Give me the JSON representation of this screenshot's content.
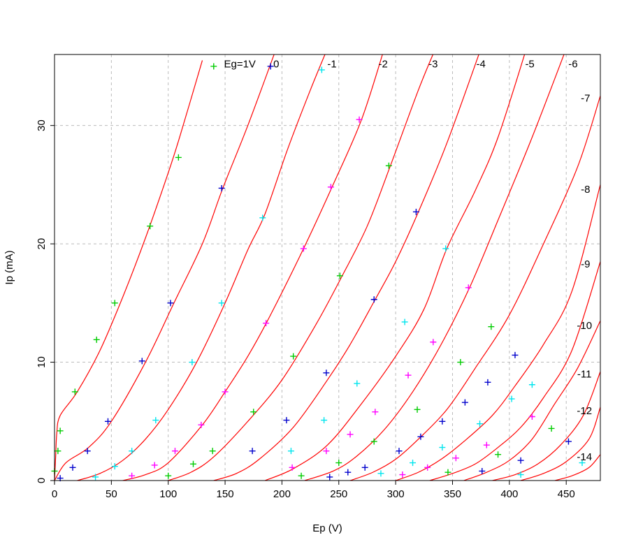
{
  "chart_data": {
    "type": "scatter",
    "title": "",
    "xlabel": "Ep (V)",
    "ylabel": "Ip (mA)",
    "xlim": [
      0,
      480
    ],
    "ylim": [
      0,
      36
    ],
    "x_ticks": [
      0,
      50,
      100,
      150,
      200,
      250,
      300,
      350,
      400,
      450
    ],
    "y_ticks": [
      0,
      10,
      20,
      30
    ],
    "grid": true,
    "colors": {
      "curve": "#ff0000",
      "grid": "#bbbbbb",
      "points": [
        "#00cc00",
        "#0000cc",
        "#00e5ee",
        "#ff00ff"
      ]
    },
    "curve_labels": [
      "Eg=1V",
      "0",
      "-1",
      "-2",
      "-3",
      "-4",
      "-5",
      "-6",
      "-7",
      "-8",
      "-9",
      "-10",
      "-11",
      "-12",
      "-14"
    ],
    "curves": [
      {
        "label": "Eg=1V",
        "points": [
          [
            0,
            0
          ],
          [
            1,
            2
          ],
          [
            2,
            4
          ],
          [
            5,
            5.5
          ],
          [
            20,
            7.5
          ],
          [
            40,
            11
          ],
          [
            60,
            15.5
          ],
          [
            80,
            20.5
          ],
          [
            100,
            26
          ],
          [
            110,
            29
          ],
          [
            130,
            35.5
          ]
        ]
      },
      {
        "label": "0",
        "points": [
          [
            0,
            0
          ],
          [
            10,
            1.5
          ],
          [
            30,
            2.8
          ],
          [
            50,
            5
          ],
          [
            80,
            10
          ],
          [
            105,
            15
          ],
          [
            130,
            20
          ],
          [
            148,
            24.7
          ],
          [
            170,
            30
          ],
          [
            195,
            36.5
          ]
        ]
      },
      {
        "label": "-1",
        "points": [
          [
            20,
            0
          ],
          [
            40,
            0.6
          ],
          [
            60,
            1.7
          ],
          [
            80,
            3.5
          ],
          [
            100,
            6
          ],
          [
            125,
            10
          ],
          [
            150,
            15
          ],
          [
            170,
            19.5
          ],
          [
            185,
            22.5
          ],
          [
            205,
            28
          ],
          [
            225,
            33
          ],
          [
            240,
            36.5
          ]
        ]
      },
      {
        "label": "-2",
        "points": [
          [
            60,
            0
          ],
          [
            80,
            0.5
          ],
          [
            100,
            1.5
          ],
          [
            130,
            4.7
          ],
          [
            150,
            7.5
          ],
          [
            170,
            10.5
          ],
          [
            190,
            14
          ],
          [
            220,
            19.8
          ],
          [
            245,
            25
          ],
          [
            270,
            30.5
          ],
          [
            290,
            36.5
          ]
        ]
      },
      {
        "label": "-3",
        "points": [
          [
            100,
            0
          ],
          [
            120,
            0.7
          ],
          [
            140,
            2
          ],
          [
            170,
            5
          ],
          [
            200,
            8.5
          ],
          [
            230,
            13.2
          ],
          [
            253,
            17.3
          ],
          [
            275,
            21.5
          ],
          [
            295,
            26.5
          ],
          [
            320,
            33
          ],
          [
            335,
            36.5
          ]
        ]
      },
      {
        "label": "-4",
        "points": [
          [
            140,
            0
          ],
          [
            160,
            0.6
          ],
          [
            180,
            1.8
          ],
          [
            210,
            4.5
          ],
          [
            240,
            8.5
          ],
          [
            260,
            11.5
          ],
          [
            282,
            15.3
          ],
          [
            300,
            18.5
          ],
          [
            320,
            22.7
          ],
          [
            345,
            28.5
          ],
          [
            375,
            36.5
          ]
        ]
      },
      {
        "label": "-5",
        "points": [
          [
            185,
            0
          ],
          [
            210,
            1
          ],
          [
            240,
            3
          ],
          [
            270,
            6.5
          ],
          [
            300,
            10.5
          ],
          [
            325,
            14.5
          ],
          [
            345,
            19.6
          ],
          [
            370,
            24.5
          ],
          [
            390,
            29
          ],
          [
            415,
            36.5
          ]
        ]
      },
      {
        "label": "-6",
        "points": [
          [
            220,
            0
          ],
          [
            245,
            0.8
          ],
          [
            265,
            2
          ],
          [
            290,
            4.3
          ],
          [
            315,
            7.5
          ],
          [
            340,
            11.5
          ],
          [
            365,
            16.3
          ],
          [
            390,
            22
          ],
          [
            420,
            29
          ],
          [
            450,
            36.5
          ]
        ]
      },
      {
        "label": "-7",
        "points": [
          [
            260,
            0
          ],
          [
            280,
            0.7
          ],
          [
            300,
            1.8
          ],
          [
            320,
            3.5
          ],
          [
            345,
            6
          ],
          [
            370,
            9.5
          ],
          [
            400,
            14
          ],
          [
            430,
            20
          ],
          [
            460,
            26.5
          ],
          [
            480,
            32.5
          ]
        ]
      },
      {
        "label": "-8",
        "points": [
          [
            300,
            0
          ],
          [
            320,
            0.7
          ],
          [
            340,
            1.8
          ],
          [
            360,
            3.3
          ],
          [
            385,
            5.5
          ],
          [
            405,
            8
          ],
          [
            430,
            11.5
          ],
          [
            455,
            16
          ],
          [
            480,
            25
          ]
        ]
      },
      {
        "label": "-9",
        "points": [
          [
            330,
            0
          ],
          [
            350,
            0.6
          ],
          [
            370,
            1.4
          ],
          [
            390,
            2.8
          ],
          [
            410,
            4.5
          ],
          [
            430,
            7
          ],
          [
            455,
            11
          ],
          [
            480,
            18.5
          ]
        ]
      },
      {
        "label": "-10",
        "points": [
          [
            360,
            0
          ],
          [
            380,
            0.7
          ],
          [
            400,
            1.7
          ],
          [
            420,
            3.5
          ],
          [
            440,
            6.5
          ],
          [
            460,
            9.5
          ],
          [
            480,
            13.5
          ]
        ]
      },
      {
        "label": "-11",
        "points": [
          [
            385,
            0
          ],
          [
            405,
            0.5
          ],
          [
            425,
            1.4
          ],
          [
            445,
            3
          ],
          [
            465,
            5.5
          ],
          [
            480,
            9.2
          ]
        ]
      },
      {
        "label": "-12",
        "points": [
          [
            410,
            0
          ],
          [
            430,
            0.6
          ],
          [
            450,
            1.6
          ],
          [
            470,
            3.5
          ],
          [
            480,
            6.2
          ]
        ]
      },
      {
        "label": "-14",
        "points": [
          [
            440,
            0
          ],
          [
            455,
            0.4
          ],
          [
            470,
            1.1
          ],
          [
            480,
            2.2
          ]
        ]
      }
    ],
    "series": [
      {
        "name": "",
        "color": "#00cc00",
        "points": [
          [
            0,
            0.8
          ],
          [
            3,
            2.5
          ],
          [
            5,
            4.2
          ],
          [
            18,
            7.5
          ],
          [
            37,
            11.9
          ],
          [
            53,
            15
          ],
          [
            84,
            21.5
          ],
          [
            109,
            27.3
          ],
          [
            140,
            35
          ],
          [
            100,
            0.4
          ],
          [
            122,
            1.4
          ],
          [
            139,
            2.5
          ],
          [
            175,
            5.8
          ],
          [
            210,
            10.5
          ],
          [
            251,
            17.3
          ],
          [
            294,
            26.6
          ],
          [
            217,
            0.4
          ],
          [
            250,
            1.5
          ],
          [
            281,
            3.3
          ],
          [
            319,
            6
          ],
          [
            357,
            10
          ],
          [
            384,
            13
          ],
          [
            346,
            0.7
          ],
          [
            390,
            2.2
          ],
          [
            437,
            4.4
          ]
        ]
      },
      {
        "name": "",
        "color": "#0000cc",
        "points": [
          [
            5,
            0.2
          ],
          [
            16,
            1.1
          ],
          [
            29,
            2.5
          ],
          [
            47,
            5
          ],
          [
            77,
            10.1
          ],
          [
            102,
            15
          ],
          [
            147,
            24.7
          ],
          [
            190,
            35
          ],
          [
            174,
            2.5
          ],
          [
            204,
            5.1
          ],
          [
            239,
            9.1
          ],
          [
            281,
            15.3
          ],
          [
            318,
            22.7
          ],
          [
            242,
            0.3
          ],
          [
            258,
            0.7
          ],
          [
            273,
            1.1
          ],
          [
            303,
            2.5
          ],
          [
            322,
            3.7
          ],
          [
            341,
            5
          ],
          [
            361,
            6.6
          ],
          [
            381,
            8.3
          ],
          [
            405,
            10.6
          ],
          [
            376,
            0.8
          ],
          [
            410,
            1.7
          ],
          [
            452,
            3.3
          ]
        ]
      },
      {
        "name": "",
        "color": "#00e5ee",
        "points": [
          [
            36,
            0.3
          ],
          [
            53,
            1.2
          ],
          [
            68,
            2.5
          ],
          [
            89,
            5.1
          ],
          [
            121,
            10
          ],
          [
            147,
            15
          ],
          [
            183,
            22.2
          ],
          [
            235,
            34.7
          ],
          [
            208,
            2.5
          ],
          [
            237,
            5.1
          ],
          [
            266,
            8.2
          ],
          [
            308,
            13.4
          ],
          [
            344,
            19.6
          ],
          [
            287,
            0.6
          ],
          [
            315,
            1.5
          ],
          [
            341,
            2.8
          ],
          [
            374,
            4.8
          ],
          [
            402,
            6.9
          ],
          [
            420,
            8.1
          ],
          [
            410,
            0.5
          ],
          [
            464,
            1.5
          ]
        ]
      },
      {
        "name": "",
        "color": "#ff00ff",
        "points": [
          [
            68,
            0.4
          ],
          [
            88,
            1.3
          ],
          [
            106,
            2.5
          ],
          [
            129,
            4.7
          ],
          [
            150,
            7.5
          ],
          [
            186,
            13.3
          ],
          [
            219,
            19.6
          ],
          [
            243,
            24.8
          ],
          [
            268,
            30.5
          ],
          [
            209,
            1.1
          ],
          [
            239,
            2.5
          ],
          [
            260,
            3.9
          ],
          [
            282,
            5.8
          ],
          [
            311,
            8.9
          ],
          [
            333,
            11.7
          ],
          [
            364,
            16.3
          ],
          [
            306,
            0.5
          ],
          [
            328,
            1.1
          ],
          [
            353,
            1.9
          ],
          [
            380,
            3
          ],
          [
            420,
            5.4
          ]
        ]
      }
    ]
  }
}
